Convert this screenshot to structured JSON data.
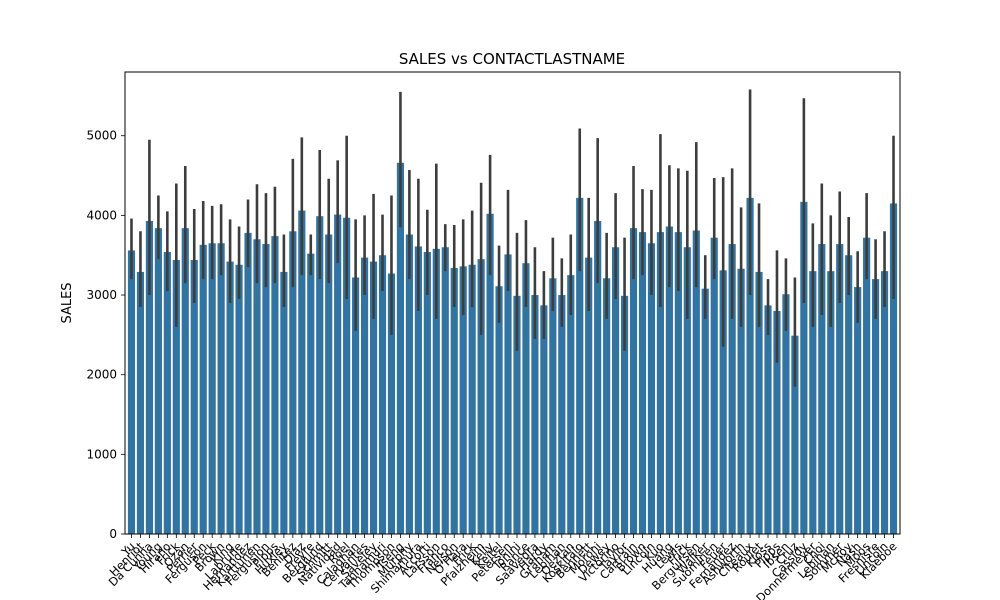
{
  "chart_data": {
    "type": "bar",
    "title": "SALES vs CONTACTLASTNAME",
    "xlabel": "",
    "ylabel": "SALES",
    "ylim": [
      0,
      5800
    ],
    "yticks": [
      0,
      1000,
      2000,
      3000,
      4000,
      5000
    ],
    "grid": false,
    "bar_color": "#3274a1",
    "errorbar_color": "#3d3d3d",
    "categories": [
      "Yu",
      "Henriot",
      "Da Cunha",
      "Young",
      "Hirano",
      "Frick",
      "Ozan",
      "Perrier",
      "Ferguson",
      "Peck",
      "Brown",
      "King",
      "Labrune",
      "Hernandez",
      "Karttunen",
      "Fergusion",
      "Pipps",
      "Huxley",
      "Benitez",
      "Diaz",
      "Freyre",
      "Berglund",
      "Schmitt",
      "Natividad",
      "Roel",
      "Calaghan",
      "Cervantes",
      "Saveley",
      "Tannamuri",
      "Thompson",
      "Tseng",
      "Murphy",
      "Shimamura",
      "Accorti",
      "Larsson",
      "Franco",
      "Nelson",
      "O'Hara",
      "Frick",
      "Pfalzheim",
      "Kelly",
      "Keitel",
      "Petersen",
      "Tonini",
      "Rance",
      "Saavedra",
      "Hardy",
      "Graham",
      "Lebihan",
      "Oeztan",
      "Koskitalo",
      "Bennett",
      "Moroni",
      "Dewey",
      "Victorino",
      "Taylor",
      "Cartrain",
      "Brown",
      "Lincoln",
      "Kuo",
      "Huang",
      "Lewis",
      "Frick",
      "Bergulfsen",
      "Walker",
      "Suominen",
      "Feuer",
      "Fernandez",
      "Ashworth",
      "Citeaux",
      "Roulet",
      "Kloss",
      "Pipps",
      "Ibsen",
      "Cruz",
      "Cassidy",
      "Donnermeyer",
      "Choi",
      "Lebihan",
      "Sommer",
      "McRoy",
      "Nash",
      "Moos",
      "Fresnisre",
      "Lincoln",
      "Klaeboe"
    ],
    "visible_category_labels": [
      "Yu",
      "Henriot",
      "Da Cunha",
      "Young",
      "Hirano",
      "Frick",
      "Ozan",
      "Perrier",
      "Ferguson",
      "Peck",
      "Brown",
      "King",
      "Labrune",
      "Hernandez",
      "Karttunen",
      "Fergusion",
      "Pipps",
      "Huxley",
      "Benitez",
      "Diaz",
      "Freyre",
      "Berglund",
      "Schmitt",
      "Natividad",
      "Roel",
      "Calaghan",
      "Cervantes",
      "Saveley",
      "Tannamuri",
      "Thompson",
      "Tseng",
      "Murphy",
      "Shimamura",
      "Accorti",
      "Larsson",
      "Franco",
      "Nelson",
      "O'Hara",
      "Frick",
      "Pfalzheim",
      "Kelly",
      "Keitel",
      "Petersen",
      "Tonini",
      "Rance",
      "Saavedra",
      "Hardy",
      "Graham",
      "Lebihan",
      "Oeztan",
      "Koskitalo",
      "Bennett",
      "Moroni",
      "Dewey",
      "Victorino",
      "Taylor",
      "Cartrain",
      "Brown",
      "Lincoln",
      "Kuo",
      "Huang",
      "Lewis",
      "Frick",
      "Bergulfsen",
      "Walker",
      "Suominen",
      "Feuer",
      "Fernandez",
      "Ashworth",
      "Citeaux",
      "Roulet",
      "Kloss",
      "Pipps",
      "Ibsen",
      "Cruz",
      "Cassidy",
      "Donnermeyer",
      "Choi",
      "Lebihan",
      "Sommer",
      "McRoy",
      "Nash",
      "Moos",
      "Fresnisre",
      "Lincoln",
      "Klaeboe"
    ],
    "values": [
      3560,
      3290,
      3930,
      3840,
      3540,
      3440,
      3840,
      3440,
      3630,
      3650,
      3650,
      3420,
      3380,
      3780,
      3700,
      3640,
      3740,
      3290,
      3800,
      4060,
      3520,
      3990,
      3760,
      4010,
      3970,
      3220,
      3470,
      3420,
      3500,
      3270,
      4660,
      3760,
      3610,
      3540,
      3580,
      3600,
      3340,
      3360,
      3380,
      3450,
      4020,
      3110,
      3510,
      2990,
      3400,
      3000,
      2870,
      3210,
      3000,
      3250,
      4220,
      3470,
      3930,
      3210,
      3600,
      2990,
      3840,
      3790,
      3650,
      3790,
      3860,
      3790,
      3600,
      3810,
      3080,
      3720,
      3310,
      3640,
      3330,
      4220,
      3290,
      2870,
      2800,
      3010,
      2490,
      4170,
      3300,
      3640,
      3300,
      3640,
      3500,
      3100,
      3720,
      3200,
      3300,
      4150
    ],
    "ci_low": [
      3200,
      2850,
      3000,
      3450,
      3050,
      2600,
      3150,
      2900,
      3200,
      3200,
      3250,
      2900,
      2950,
      3350,
      3150,
      3100,
      3150,
      2850,
      3100,
      3250,
      3250,
      3200,
      3150,
      3400,
      2950,
      2550,
      3000,
      2700,
      3050,
      2500,
      3850,
      3200,
      2800,
      3000,
      2700,
      3300,
      2850,
      2750,
      2850,
      2500,
      3250,
      2650,
      3050,
      2300,
      2850,
      2450,
      2450,
      2800,
      2600,
      2750,
      3300,
      2800,
      3150,
      2700,
      2950,
      2300,
      3200,
      3250,
      3000,
      2850,
      3100,
      3050,
      2700,
      3100,
      2700,
      3200,
      2350,
      2700,
      2600,
      3000,
      2600,
      2500,
      2150,
      2550,
      1850,
      2900,
      2600,
      2750,
      2600,
      2900,
      3000,
      2650,
      3200,
      2700,
      2850,
      2950
    ],
    "ci_high": [
      3960,
      3800,
      4950,
      4250,
      4050,
      4400,
      4620,
      4080,
      4180,
      4120,
      4140,
      3950,
      3860,
      4200,
      4390,
      4280,
      4360,
      3760,
      4710,
      4980,
      3760,
      4820,
      4460,
      4690,
      5000,
      3950,
      4000,
      4270,
      4010,
      4250,
      5550,
      4570,
      4460,
      4070,
      4650,
      3890,
      3880,
      3950,
      4060,
      4410,
      4760,
      3620,
      4320,
      3780,
      3940,
      3600,
      3300,
      3720,
      3460,
      3760,
      5090,
      4220,
      4970,
      3780,
      4280,
      3720,
      4620,
      4330,
      4320,
      5020,
      4630,
      4590,
      4560,
      4920,
      3500,
      4470,
      4480,
      4590,
      4100,
      5580,
      4150,
      3200,
      3560,
      3460,
      3220,
      5470,
      3900,
      4400,
      4000,
      4300,
      3980,
      3550,
      4280,
      3700,
      3800,
      5000
    ]
  }
}
